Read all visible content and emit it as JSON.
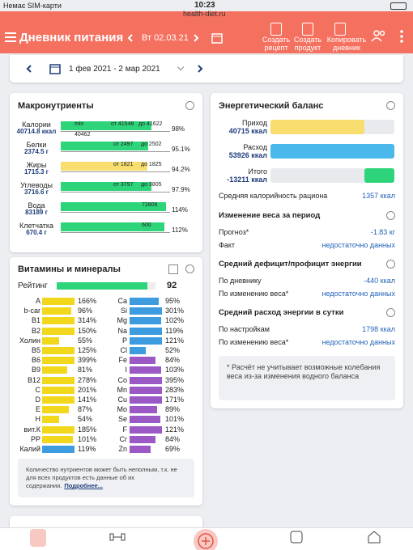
{
  "status_bar": {
    "carrier": "Немає SIM-карти",
    "time": "10:23",
    "url": "health-diet.ru"
  },
  "header": {
    "title": "Дневник питания",
    "date": "Вт 02.03.21",
    "buttons": [
      "Создать рецепт",
      "Создать продукт",
      "Копировать дневник"
    ]
  },
  "range": "1 фев 2021 - 2 мар 2021",
  "macros": {
    "title": "Макронутриенты",
    "rows": [
      {
        "name": "Калории",
        "amount": "40714.8 ккал",
        "pct": {
          "value": 98,
          "label": "98%"
        },
        "marks": [
          "min",
          "от 41548",
          "до 41622",
          "40462"
        ],
        "color": "#2ed47a"
      },
      {
        "name": "Белки",
        "amount": "2374.5 г",
        "pct": {
          "value": 95.1,
          "label": "95.1%"
        },
        "marks": [
          "от 2497",
          "до 2502"
        ],
        "color": "#2ed47a"
      },
      {
        "name": "Жиры",
        "amount": "1715.3 г",
        "pct": {
          "value": 94.2,
          "label": "94.2%"
        },
        "marks": [
          "от 1821",
          "до 1825"
        ],
        "color": "#f7de6e"
      },
      {
        "name": "Углеводы",
        "amount": "3716.6 г",
        "pct": {
          "value": 97.9,
          "label": "97.9%"
        },
        "marks": [
          "от 3797",
          "до 3805"
        ],
        "color": "#2ed47a"
      },
      {
        "name": "Вода",
        "amount": "83189 г",
        "pct": {
          "value": 114,
          "label": "114%"
        },
        "marks": [
          "72806"
        ],
        "color": "#2ed47a"
      },
      {
        "name": "Клетчатка",
        "amount": "670.4 г",
        "pct": {
          "value": 112,
          "label": "112%"
        },
        "marks": [
          "600"
        ],
        "color": "#2ed47a"
      }
    ]
  },
  "vitamins": {
    "title": "Витамины и минералы",
    "rating_label": "Рейтинг",
    "rating": 92,
    "left": [
      {
        "name": "A",
        "value": 166,
        "label": "166%",
        "color": "#f2d81c"
      },
      {
        "name": "b-car",
        "value": 96,
        "label": "96%",
        "color": "#f2d81c"
      },
      {
        "name": "B1",
        "value": 314,
        "label": "314%",
        "color": "#f2d81c"
      },
      {
        "name": "B2",
        "value": 150,
        "label": "150%",
        "color": "#f2d81c"
      },
      {
        "name": "Холин",
        "value": 55,
        "label": "55%",
        "color": "#f2d81c"
      },
      {
        "name": "B5",
        "value": 125,
        "label": "125%",
        "color": "#f2d81c"
      },
      {
        "name": "B6",
        "value": 399,
        "label": "399%",
        "color": "#f2d81c"
      },
      {
        "name": "B9",
        "value": 81,
        "label": "81%",
        "color": "#f2d81c"
      },
      {
        "name": "B12",
        "value": 278,
        "label": "278%",
        "color": "#f2d81c"
      },
      {
        "name": "C",
        "value": 201,
        "label": "201%",
        "color": "#f2d81c"
      },
      {
        "name": "D",
        "value": 141,
        "label": "141%",
        "color": "#f2d81c"
      },
      {
        "name": "E",
        "value": 87,
        "label": "87%",
        "color": "#f2d81c"
      },
      {
        "name": "H",
        "value": 54,
        "label": "54%",
        "color": "#f2d81c"
      },
      {
        "name": "вит.К",
        "value": 185,
        "label": "185%",
        "color": "#f2d81c"
      },
      {
        "name": "PP",
        "value": 101,
        "label": "101%",
        "color": "#f2d81c"
      },
      {
        "name": "Калий",
        "value": 119,
        "label": "119%",
        "color": "#3d9be0"
      }
    ],
    "right": [
      {
        "name": "Ca",
        "value": 95,
        "label": "95%",
        "color": "#3d9be0"
      },
      {
        "name": "Si",
        "value": 301,
        "label": "301%",
        "color": "#3d9be0"
      },
      {
        "name": "Mg",
        "value": 102,
        "label": "102%",
        "color": "#3d9be0"
      },
      {
        "name": "Na",
        "value": 119,
        "label": "119%",
        "color": "#3d9be0"
      },
      {
        "name": "P",
        "value": 121,
        "label": "121%",
        "color": "#3d9be0"
      },
      {
        "name": "Cl",
        "value": 52,
        "label": "52%",
        "color": "#3d9be0"
      },
      {
        "name": "Fe",
        "value": 84,
        "label": "84%",
        "color": "#9b59c6"
      },
      {
        "name": "I",
        "value": 103,
        "label": "103%",
        "color": "#9b59c6"
      },
      {
        "name": "Co",
        "value": 395,
        "label": "395%",
        "color": "#9b59c6"
      },
      {
        "name": "Mn",
        "value": 283,
        "label": "283%",
        "color": "#9b59c6"
      },
      {
        "name": "Cu",
        "value": 171,
        "label": "171%",
        "color": "#9b59c6"
      },
      {
        "name": "Mo",
        "value": 89,
        "label": "89%",
        "color": "#9b59c6"
      },
      {
        "name": "Se",
        "value": 101,
        "label": "101%",
        "color": "#9b59c6"
      },
      {
        "name": "F",
        "value": 121,
        "label": "121%",
        "color": "#9b59c6"
      },
      {
        "name": "Cr",
        "value": 84,
        "label": "84%",
        "color": "#9b59c6"
      },
      {
        "name": "Zn",
        "value": 69,
        "label": "69%",
        "color": "#9b59c6"
      }
    ],
    "note": "Количество нутриентов может быть неполным, т.к. не для всех продуктов есть данные об их содержании.",
    "link": "Подробнее..."
  },
  "energy": {
    "title": "Энергетический баланс",
    "bars": [
      {
        "name": "Приход",
        "value": 40715,
        "label": "40715 ккал",
        "color": "#f7de6e"
      },
      {
        "name": "Расход",
        "value": 53926,
        "label": "53926 ккал",
        "color": "#4ab8ea"
      },
      {
        "name": "Итого",
        "value": -13211,
        "label": "-13211 ккал",
        "color": "#2ed47a"
      }
    ],
    "avg_label": "Средняя калорийность рациона",
    "avg_value": "1357 ккал",
    "sections": [
      {
        "title": "Изменение веса за период",
        "rows": [
          [
            "Прогноз*",
            "-1.83 кг"
          ],
          [
            "Факт",
            "недостаточно данных"
          ]
        ]
      },
      {
        "title": "Средний дефицит/профицит энергии",
        "rows": [
          [
            "По дневнику",
            "-440 ккал"
          ],
          [
            "По изменению веса*",
            "недостаточно данных"
          ]
        ]
      },
      {
        "title": "Средний расход энергии в сутки",
        "rows": [
          [
            "По настройкам",
            "1798 ккал"
          ],
          [
            "По изменению веса*",
            "недостаточно данных"
          ]
        ]
      }
    ],
    "note": "* Расчёт не учитывает возможные колебания веса из-за изменения водного баланса"
  }
}
